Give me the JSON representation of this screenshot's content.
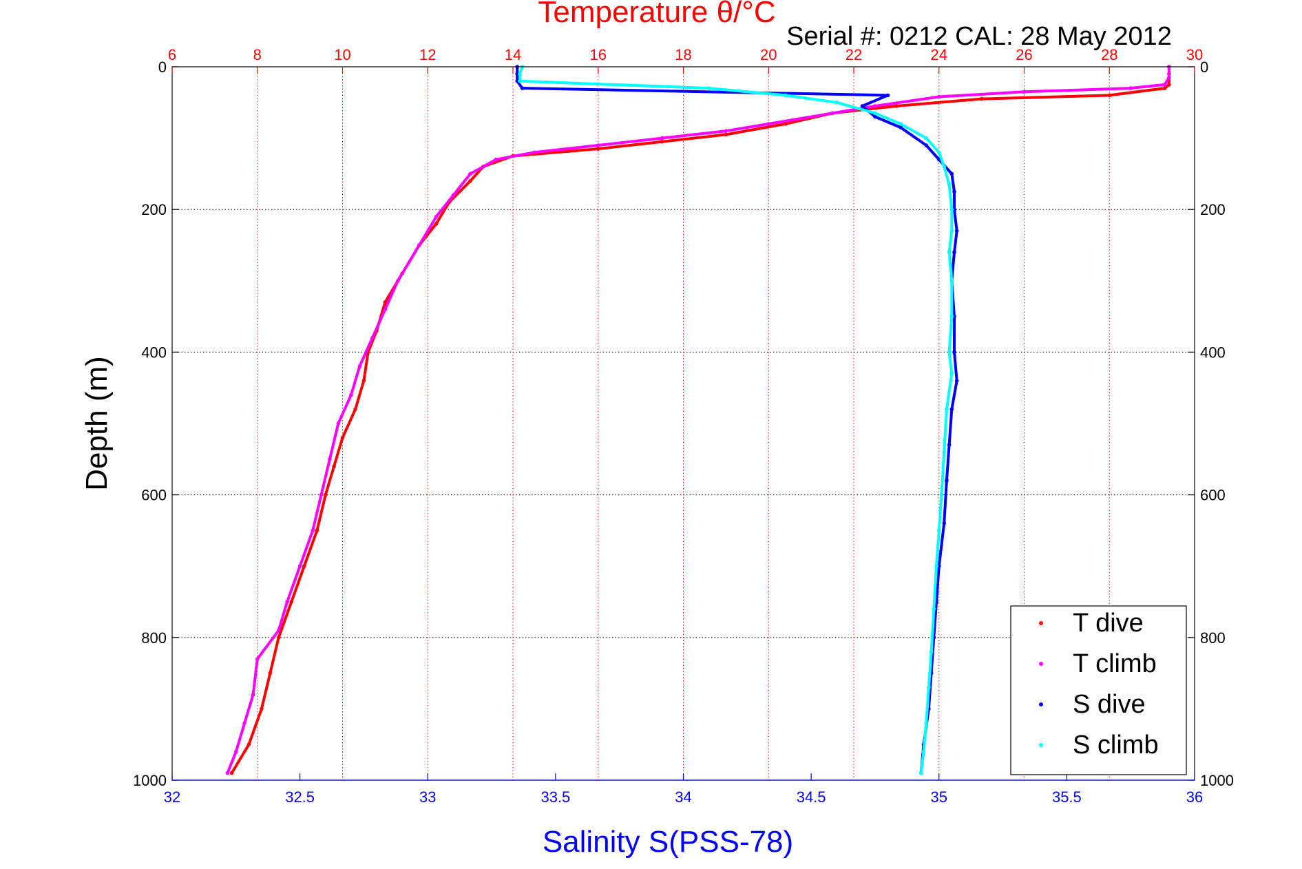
{
  "chart_data": {
    "type": "scatter",
    "title": "Temperature θ/°C",
    "subtitle": "Serial #: 0212  CAL: 28 May 2012",
    "ylabel": "Depth (m)",
    "xlabel": "Salinity S(PSS-78)",
    "ylim": [
      1000,
      0
    ],
    "x_salinity_lim": [
      32,
      36
    ],
    "x_temperature_lim": [
      6,
      30
    ],
    "y_ticks": [
      "0",
      "200",
      "400",
      "600",
      "800",
      "1000"
    ],
    "x_salinity_ticks": [
      "32",
      "32.5",
      "33",
      "33.5",
      "34",
      "34.5",
      "35",
      "35.5",
      "36"
    ],
    "x_temperature_ticks": [
      "6",
      "8",
      "10",
      "12",
      "14",
      "16",
      "18",
      "20",
      "22",
      "24",
      "26",
      "28",
      "30"
    ],
    "grid": true,
    "legend_position": "bottom-right",
    "colors": {
      "temperature_axis": "#ff0000",
      "salinity_axis": "#0000ff",
      "t_dive": "#ff0000",
      "t_climb": "#ff00ff",
      "s_dive": "#0000ff",
      "s_climb": "#00ffff"
    },
    "series": [
      {
        "name": "T dive",
        "axis": "temperature",
        "points": [
          [
            29.4,
            0
          ],
          [
            29.4,
            10
          ],
          [
            29.4,
            25
          ],
          [
            29.3,
            30
          ],
          [
            28.0,
            40
          ],
          [
            25.0,
            45
          ],
          [
            23.0,
            55
          ],
          [
            21.5,
            65
          ],
          [
            20.4,
            80
          ],
          [
            19.0,
            95
          ],
          [
            17.5,
            105
          ],
          [
            16.0,
            115
          ],
          [
            14.0,
            125
          ],
          [
            13.3,
            140
          ],
          [
            13.0,
            160
          ],
          [
            12.5,
            190
          ],
          [
            12.2,
            220
          ],
          [
            11.8,
            250
          ],
          [
            11.4,
            290
          ],
          [
            11.0,
            330
          ],
          [
            10.8,
            370
          ],
          [
            10.6,
            400
          ],
          [
            10.5,
            440
          ],
          [
            10.3,
            480
          ],
          [
            10.0,
            520
          ],
          [
            9.8,
            560
          ],
          [
            9.6,
            600
          ],
          [
            9.4,
            650
          ],
          [
            9.1,
            700
          ],
          [
            8.8,
            750
          ],
          [
            8.5,
            800
          ],
          [
            8.3,
            850
          ],
          [
            8.1,
            900
          ],
          [
            7.8,
            950
          ],
          [
            7.4,
            990
          ]
        ]
      },
      {
        "name": "T climb",
        "axis": "temperature",
        "points": [
          [
            29.4,
            0
          ],
          [
            29.4,
            15
          ],
          [
            29.3,
            25
          ],
          [
            28.5,
            30
          ],
          [
            26.0,
            35
          ],
          [
            24.0,
            42
          ],
          [
            22.5,
            55
          ],
          [
            21.5,
            65
          ],
          [
            20.0,
            80
          ],
          [
            19.0,
            90
          ],
          [
            17.5,
            100
          ],
          [
            16.0,
            110
          ],
          [
            14.5,
            120
          ],
          [
            13.6,
            130
          ],
          [
            13.0,
            150
          ],
          [
            12.6,
            180
          ],
          [
            12.2,
            210
          ],
          [
            11.8,
            250
          ],
          [
            11.3,
            300
          ],
          [
            11.0,
            340
          ],
          [
            10.7,
            380
          ],
          [
            10.4,
            420
          ],
          [
            10.2,
            460
          ],
          [
            9.9,
            500
          ],
          [
            9.7,
            550
          ],
          [
            9.5,
            600
          ],
          [
            9.3,
            650
          ],
          [
            9.0,
            700
          ],
          [
            8.7,
            750
          ],
          [
            8.5,
            790
          ],
          [
            8.0,
            830
          ],
          [
            7.9,
            880
          ],
          [
            7.7,
            920
          ],
          [
            7.5,
            960
          ],
          [
            7.3,
            990
          ]
        ]
      },
      {
        "name": "S dive",
        "axis": "salinity",
        "points": [
          [
            33.35,
            0
          ],
          [
            33.35,
            10
          ],
          [
            33.35,
            20
          ],
          [
            33.37,
            30
          ],
          [
            34.8,
            40
          ],
          [
            34.7,
            55
          ],
          [
            34.75,
            70
          ],
          [
            34.85,
            85
          ],
          [
            34.95,
            110
          ],
          [
            35.0,
            130
          ],
          [
            35.05,
            150
          ],
          [
            35.06,
            175
          ],
          [
            35.06,
            200
          ],
          [
            35.07,
            230
          ],
          [
            35.06,
            260
          ],
          [
            35.05,
            300
          ],
          [
            35.06,
            350
          ],
          [
            35.06,
            400
          ],
          [
            35.07,
            440
          ],
          [
            35.05,
            480
          ],
          [
            35.04,
            530
          ],
          [
            35.03,
            580
          ],
          [
            35.02,
            640
          ],
          [
            35.0,
            700
          ],
          [
            34.99,
            750
          ],
          [
            34.98,
            800
          ],
          [
            34.97,
            850
          ],
          [
            34.96,
            900
          ],
          [
            34.94,
            950
          ],
          [
            34.93,
            990
          ]
        ]
      },
      {
        "name": "S climb",
        "axis": "salinity",
        "points": [
          [
            33.37,
            0
          ],
          [
            33.36,
            10
          ],
          [
            33.36,
            20
          ],
          [
            34.1,
            30
          ],
          [
            34.4,
            40
          ],
          [
            34.6,
            50
          ],
          [
            34.75,
            65
          ],
          [
            34.85,
            80
          ],
          [
            34.95,
            100
          ],
          [
            35.0,
            120
          ],
          [
            35.02,
            140
          ],
          [
            35.04,
            165
          ],
          [
            35.05,
            200
          ],
          [
            35.05,
            230
          ],
          [
            35.04,
            260
          ],
          [
            35.05,
            300
          ],
          [
            35.05,
            350
          ],
          [
            35.04,
            400
          ],
          [
            35.05,
            430
          ],
          [
            35.03,
            480
          ],
          [
            35.02,
            540
          ],
          [
            35.01,
            600
          ],
          [
            35.0,
            650
          ],
          [
            34.99,
            700
          ],
          [
            34.98,
            760
          ],
          [
            34.97,
            820
          ],
          [
            34.96,
            870
          ],
          [
            34.95,
            920
          ],
          [
            34.94,
            960
          ],
          [
            34.93,
            990
          ]
        ]
      }
    ]
  }
}
